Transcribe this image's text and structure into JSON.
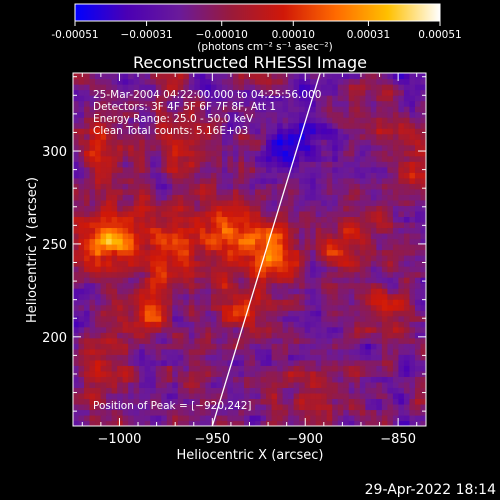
{
  "chart_data": {
    "type": "heatmap",
    "title": "Reconstructed RHESSI Image",
    "xlabel": "Heliocentric X (arcsec)",
    "ylabel": "Heliocentric Y (arcsec)",
    "xlim": [
      -1025,
      -835
    ],
    "ylim": [
      152,
      342
    ],
    "x_ticks": [
      -1000,
      -950,
      -900,
      -850
    ],
    "x_tick_labels": [
      "−1000",
      "−950",
      "−900",
      "−850"
    ],
    "y_ticks": [
      200,
      250,
      300
    ],
    "y_tick_labels": [
      "200",
      "250",
      "300"
    ],
    "colorbar": {
      "min": -0.00051,
      "max": 0.00051,
      "ticks": [
        -0.00051,
        -0.00031,
        -0.0001,
        0.0001,
        0.00031,
        0.00051
      ],
      "tick_labels": [
        "-0.00051",
        "−0.00031",
        "−0.00010",
        "0.00010",
        "0.00031",
        "0.00051"
      ],
      "unit_label": "(photons cm⁻² s⁻¹ asec⁻²)",
      "colors": [
        "#0000ff",
        "#4b00b4",
        "#6a1a9a",
        "#9a1a3a",
        "#d01808",
        "#ff6a00",
        "#ffc000",
        "#ffffff"
      ]
    },
    "annotations": {
      "time": "25-Mar-2004 04:22:00.000 to 04:25:56.000",
      "detectors": "Detectors: 3F 4F 5F 6F 7F 8F, Att 1",
      "energy": "Energy Range: 25.0 - 50.0 keV",
      "algorithm": "Clean     Total counts: 5.16E+03",
      "peak": "Position of Peak = [−920,242]"
    },
    "peak": [
      -920,
      242
    ],
    "limb_line": {
      "x": [
        -950,
        -892
      ],
      "y": [
        152,
        342
      ]
    },
    "sources": [
      {
        "x": -1007,
        "y": 252,
        "amp": 1.0
      },
      {
        "x": -972,
        "y": 248,
        "amp": 0.8
      },
      {
        "x": -945,
        "y": 256,
        "amp": 0.85
      },
      {
        "x": -920,
        "y": 245,
        "amp": 1.0
      },
      {
        "x": -985,
        "y": 214,
        "amp": 0.6
      },
      {
        "x": -935,
        "y": 214,
        "amp": 0.5
      },
      {
        "x": -1010,
        "y": 300,
        "amp": 0.55
      },
      {
        "x": -965,
        "y": 305,
        "amp": 0.45
      },
      {
        "x": -880,
        "y": 250,
        "amp": 0.45
      },
      {
        "x": -855,
        "y": 215,
        "amp": 0.4
      },
      {
        "x": -895,
        "y": 170,
        "amp": 0.4
      },
      {
        "x": -845,
        "y": 290,
        "amp": 0.35
      },
      {
        "x": -1010,
        "y": 180,
        "amp": 0.45
      },
      {
        "x": -870,
        "y": 320,
        "amp": 0.3
      },
      {
        "x": -905,
        "y": 305,
        "amp": -0.55
      }
    ]
  },
  "footer": {
    "date": "29-Apr-2022 18:14"
  }
}
